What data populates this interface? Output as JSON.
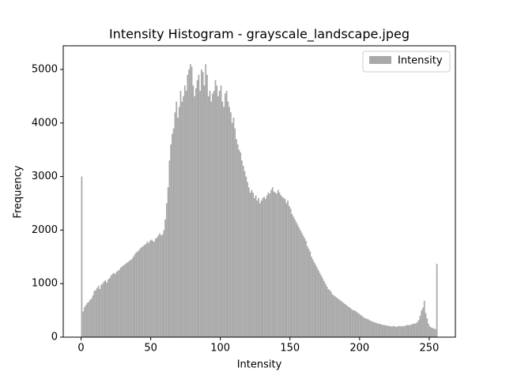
{
  "chart_data": {
    "type": "histogram",
    "title": "Intensity Histogram - grayscale_landscape.jpeg",
    "x_label": "Intensity",
    "y_label": "Frequency",
    "bins": [
      0,
      1,
      2,
      3,
      4,
      5,
      6,
      7,
      8,
      9,
      10,
      11,
      12,
      13,
      14,
      15,
      16,
      17,
      18,
      19,
      20,
      21,
      22,
      23,
      24,
      25,
      26,
      27,
      28,
      29,
      30,
      31,
      32,
      33,
      34,
      35,
      36,
      37,
      38,
      39,
      40,
      41,
      42,
      43,
      44,
      45,
      46,
      47,
      48,
      49,
      50,
      51,
      52,
      53,
      54,
      55,
      56,
      57,
      58,
      59,
      60,
      61,
      62,
      63,
      64,
      65,
      66,
      67,
      68,
      69,
      70,
      71,
      72,
      73,
      74,
      75,
      76,
      77,
      78,
      79,
      80,
      81,
      82,
      83,
      84,
      85,
      86,
      87,
      88,
      89,
      90,
      91,
      92,
      93,
      94,
      95,
      96,
      97,
      98,
      99,
      100,
      101,
      102,
      103,
      104,
      105,
      106,
      107,
      108,
      109,
      110,
      111,
      112,
      113,
      114,
      115,
      116,
      117,
      118,
      119,
      120,
      121,
      122,
      123,
      124,
      125,
      126,
      127,
      128,
      129,
      130,
      131,
      132,
      133,
      134,
      135,
      136,
      137,
      138,
      139,
      140,
      141,
      142,
      143,
      144,
      145,
      146,
      147,
      148,
      149,
      150,
      151,
      152,
      153,
      154,
      155,
      156,
      157,
      158,
      159,
      160,
      161,
      162,
      163,
      164,
      165,
      166,
      167,
      168,
      169,
      170,
      171,
      172,
      173,
      174,
      175,
      176,
      177,
      178,
      179,
      180,
      181,
      182,
      183,
      184,
      185,
      186,
      187,
      188,
      189,
      190,
      191,
      192,
      193,
      194,
      195,
      196,
      197,
      198,
      199,
      200,
      201,
      202,
      203,
      204,
      205,
      206,
      207,
      208,
      209,
      210,
      211,
      212,
      213,
      214,
      215,
      216,
      217,
      218,
      219,
      220,
      221,
      222,
      223,
      224,
      225,
      226,
      227,
      228,
      229,
      230,
      231,
      232,
      233,
      234,
      235,
      236,
      237,
      238,
      239,
      240,
      241,
      242,
      243,
      244,
      245,
      246,
      247,
      248,
      249,
      250,
      251,
      252,
      253,
      254,
      255,
      256
    ],
    "series": [
      {
        "name": "Intensity",
        "color": "#a9a9a9",
        "values": [
          3000,
          480,
          560,
          600,
          640,
          660,
          700,
          720,
          780,
          860,
          880,
          920,
          960,
          900,
          980,
          1000,
          1040,
          1060,
          1020,
          1080,
          1100,
          1150,
          1180,
          1200,
          1180,
          1220,
          1240,
          1260,
          1300,
          1320,
          1340,
          1360,
          1380,
          1400,
          1420,
          1440,
          1460,
          1500,
          1540,
          1580,
          1600,
          1620,
          1660,
          1680,
          1700,
          1720,
          1740,
          1780,
          1760,
          1800,
          1820,
          1800,
          1780,
          1840,
          1860,
          1900,
          1940,
          1900,
          1920,
          2000,
          2200,
          2500,
          2800,
          3300,
          3600,
          3800,
          3900,
          4200,
          4400,
          4100,
          4300,
          4600,
          4400,
          4500,
          4700,
          4600,
          4900,
          5000,
          5100,
          5050,
          4700,
          4500,
          4650,
          4800,
          4900,
          4600,
          5000,
          4950,
          4700,
          5100,
          4900,
          4500,
          4600,
          4400,
          4550,
          4600,
          4800,
          4700,
          4500,
          4600,
          4700,
          4400,
          4300,
          4550,
          4600,
          4400,
          4300,
          4200,
          4000,
          4100,
          3900,
          3700,
          3600,
          3500,
          3450,
          3300,
          3200,
          3100,
          3000,
          2900,
          2800,
          2700,
          2750,
          2700,
          2600,
          2650,
          2550,
          2600,
          2500,
          2550,
          2600,
          2620,
          2580,
          2650,
          2700,
          2680,
          2750,
          2800,
          2720,
          2700,
          2680,
          2750,
          2700,
          2650,
          2620,
          2600,
          2580,
          2500,
          2550,
          2450,
          2400,
          2300,
          2250,
          2200,
          2150,
          2100,
          2050,
          2000,
          1950,
          1900,
          1850,
          1800,
          1700,
          1650,
          1600,
          1500,
          1450,
          1400,
          1350,
          1300,
          1250,
          1200,
          1150,
          1100,
          1050,
          1000,
          950,
          900,
          880,
          850,
          800,
          780,
          760,
          740,
          720,
          700,
          680,
          660,
          640,
          620,
          600,
          580,
          560,
          540,
          520,
          500,
          500,
          480,
          460,
          440,
          420,
          400,
          380,
          360,
          350,
          340,
          330,
          310,
          300,
          290,
          280,
          270,
          260,
          250,
          250,
          240,
          230,
          230,
          220,
          220,
          210,
          210,
          200,
          200,
          210,
          200,
          190,
          200,
          210,
          200,
          210,
          200,
          210,
          220,
          230,
          220,
          230,
          240,
          250,
          250,
          260,
          280,
          320,
          400,
          500,
          550,
          680,
          450,
          350,
          250,
          200,
          180,
          170,
          160,
          150,
          1370
        ]
      }
    ],
    "xlim": [
      -12.8,
      268.8
    ],
    "ylim": [
      0,
      5442
    ],
    "xticks": [
      0,
      50,
      100,
      150,
      200,
      250
    ],
    "yticks": [
      0,
      1000,
      2000,
      3000,
      4000,
      5000
    ],
    "legend": "upper right"
  }
}
